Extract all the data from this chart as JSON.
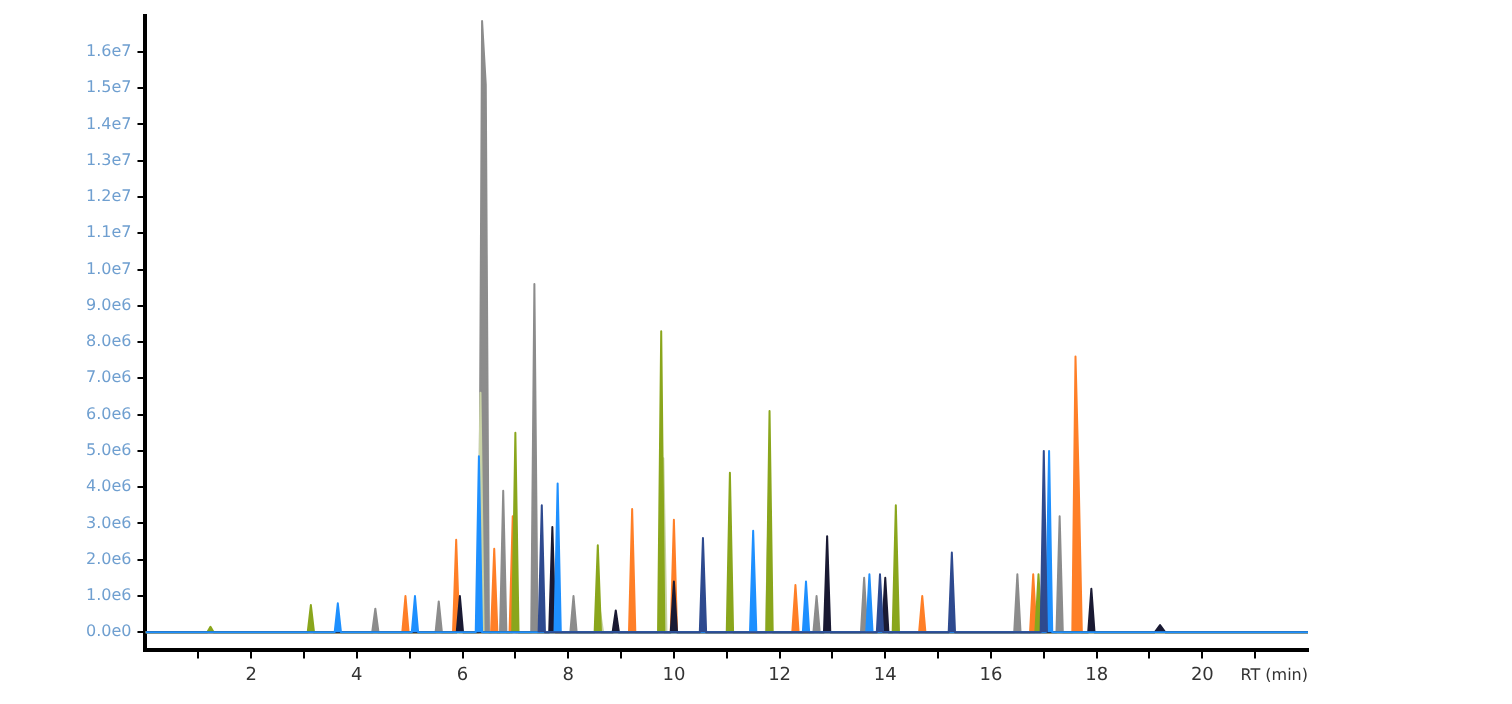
{
  "chart_data": {
    "type": "area",
    "xlabel": "RT (min)",
    "xlim": [
      0,
      22
    ],
    "ylim": [
      -500000,
      17000000
    ],
    "xticks": [
      {
        "value": 1,
        "label": null
      },
      2,
      {
        "value": 3,
        "label": null
      },
      4,
      {
        "value": 5,
        "label": null
      },
      6,
      {
        "value": 7,
        "label": null
      },
      8,
      {
        "value": 9,
        "label": null
      },
      10,
      {
        "value": 11,
        "label": null
      },
      12,
      {
        "value": 13,
        "label": null
      },
      14,
      {
        "value": 15,
        "label": null
      },
      16,
      {
        "value": 17,
        "label": null
      },
      18,
      {
        "value": 19,
        "label": null
      },
      20,
      {
        "value": 21,
        "label": null
      }
    ],
    "yticks": [
      {
        "value": 0,
        "label": "0.0e0"
      },
      {
        "value": 1000000,
        "label": "1.0e6"
      },
      {
        "value": 2000000,
        "label": "2.0e6"
      },
      {
        "value": 3000000,
        "label": "3.0e6"
      },
      {
        "value": 4000000,
        "label": "4.0e6"
      },
      {
        "value": 5000000,
        "label": "5.0e6"
      },
      {
        "value": 6000000,
        "label": "6.0e6"
      },
      {
        "value": 7000000,
        "label": "7.0e6"
      },
      {
        "value": 8000000,
        "label": "8.0e6"
      },
      {
        "value": 9000000,
        "label": "9.0e6"
      },
      {
        "value": 10000000,
        "label": "1.0e7"
      },
      {
        "value": 11000000,
        "label": "1.1e7"
      },
      {
        "value": 12000000,
        "label": "1.2e7"
      },
      {
        "value": 13000000,
        "label": "1.3e7"
      },
      {
        "value": 14000000,
        "label": "1.4e7"
      },
      {
        "value": 15000000,
        "label": "1.5e7"
      },
      {
        "value": 16000000,
        "label": "1.6e7"
      }
    ],
    "grid": false,
    "legend": false,
    "series": [
      {
        "color": "#8c8c8c",
        "x": [
          0,
          4.29,
          4.35,
          4.41,
          5.49,
          5.55,
          5.61,
          6.31,
          6.37,
          6.44,
          6.5,
          6.71,
          6.77,
          6.83,
          7.3,
          7.36,
          7.42,
          8.04,
          8.1,
          8.16,
          12.64,
          12.7,
          12.76,
          13.54,
          13.6,
          13.66,
          16.44,
          16.5,
          16.56,
          17.24,
          17.3,
          17.36,
          22
        ],
        "values": [
          0,
          0,
          650000,
          0,
          0,
          850000,
          0,
          0,
          16850000,
          15100000,
          0,
          0,
          3900000,
          0,
          0,
          9600000,
          0,
          0,
          1000000,
          0,
          0,
          1000000,
          0,
          0,
          1500000,
          0,
          0,
          1600000,
          0,
          0,
          3200000,
          0,
          0
        ]
      },
      {
        "color": "#ff7f27",
        "x": [
          0,
          4.86,
          4.92,
          4.98,
          5.82,
          5.88,
          5.94,
          6.54,
          6.6,
          6.66,
          6.89,
          6.95,
          7.01,
          9.15,
          9.21,
          9.27,
          9.94,
          10.0,
          10.06,
          12.24,
          12.3,
          12.36,
          14.64,
          14.7,
          14.76,
          16.74,
          16.8,
          16.86,
          17.54,
          17.6,
          17.66,
          17.72,
          22
        ],
        "values": [
          0,
          0,
          1000000,
          0,
          0,
          2550000,
          0,
          0,
          2300000,
          0,
          0,
          3200000,
          0,
          0,
          3400000,
          0,
          0,
          3100000,
          0,
          0,
          1300000,
          0,
          0,
          1000000,
          0,
          0,
          1600000,
          0,
          0,
          7600000,
          4200000,
          0,
          0
        ]
      },
      {
        "color": "#c9d3a6",
        "x": [
          0,
          6.28,
          6.34,
          6.4,
          8.54,
          8.6,
          8.66,
          9.74,
          9.8,
          9.86,
          11.74,
          11.8,
          11.86,
          22
        ],
        "values": [
          0,
          0,
          6600000,
          0,
          0,
          600000,
          0,
          0,
          4800000,
          0,
          0,
          3900000,
          0,
          0
        ]
      },
      {
        "color": "#8aa61c",
        "x": [
          0,
          1.17,
          1.23,
          1.29,
          3.07,
          3.13,
          3.19,
          6.94,
          7.0,
          7.06,
          8.5,
          8.56,
          8.62,
          9.7,
          9.76,
          9.82,
          11.0,
          11.06,
          11.12,
          11.75,
          11.81,
          11.87,
          14.14,
          14.2,
          14.26,
          16.84,
          16.9,
          16.96,
          22
        ],
        "values": [
          0,
          0,
          150000,
          0,
          0,
          750000,
          0,
          0,
          5500000,
          0,
          0,
          2400000,
          0,
          0,
          8300000,
          0,
          0,
          4400000,
          0,
          0,
          6100000,
          0,
          0,
          3500000,
          0,
          0,
          1600000,
          0,
          0
        ]
      },
      {
        "color": "#1a1a33",
        "x": [
          0,
          5.89,
          5.95,
          6.01,
          7.64,
          7.7,
          7.76,
          8.84,
          8.9,
          8.96,
          9.94,
          10.0,
          10.06,
          12.84,
          12.9,
          12.96,
          13.94,
          14.0,
          14.06,
          17.84,
          17.9,
          17.96,
          19.1,
          19.2,
          19.3,
          22
        ],
        "values": [
          0,
          0,
          1000000,
          0,
          0,
          2900000,
          0,
          0,
          600000,
          0,
          0,
          1400000,
          0,
          0,
          2650000,
          0,
          0,
          1500000,
          0,
          0,
          1200000,
          0,
          0,
          200000,
          0,
          0
        ]
      },
      {
        "color": "#1e90ff",
        "x": [
          0,
          3.58,
          3.64,
          3.7,
          5.04,
          5.1,
          5.16,
          6.25,
          6.31,
          6.37,
          7.74,
          7.8,
          7.86,
          11.44,
          11.5,
          11.56,
          12.44,
          12.5,
          12.56,
          13.64,
          13.7,
          13.76,
          17.04,
          17.1,
          17.16,
          22
        ],
        "values": [
          0,
          0,
          800000,
          0,
          0,
          1000000,
          0,
          0,
          4850000,
          0,
          0,
          4100000,
          0,
          0,
          2800000,
          0,
          0,
          1400000,
          0,
          0,
          1600000,
          0,
          0,
          5000000,
          0,
          0
        ]
      },
      {
        "color": "#2e4a8f",
        "x": [
          7.44,
          7.5,
          7.56,
          10.49,
          10.55,
          10.61,
          13.84,
          13.9,
          13.96,
          15.2,
          15.26,
          15.32,
          16.94,
          17.0,
          17.06
        ],
        "values": [
          0,
          3500000,
          0,
          0,
          2600000,
          0,
          0,
          1600000,
          0,
          0,
          2200000,
          0,
          0,
          5000000,
          0
        ]
      }
    ]
  }
}
